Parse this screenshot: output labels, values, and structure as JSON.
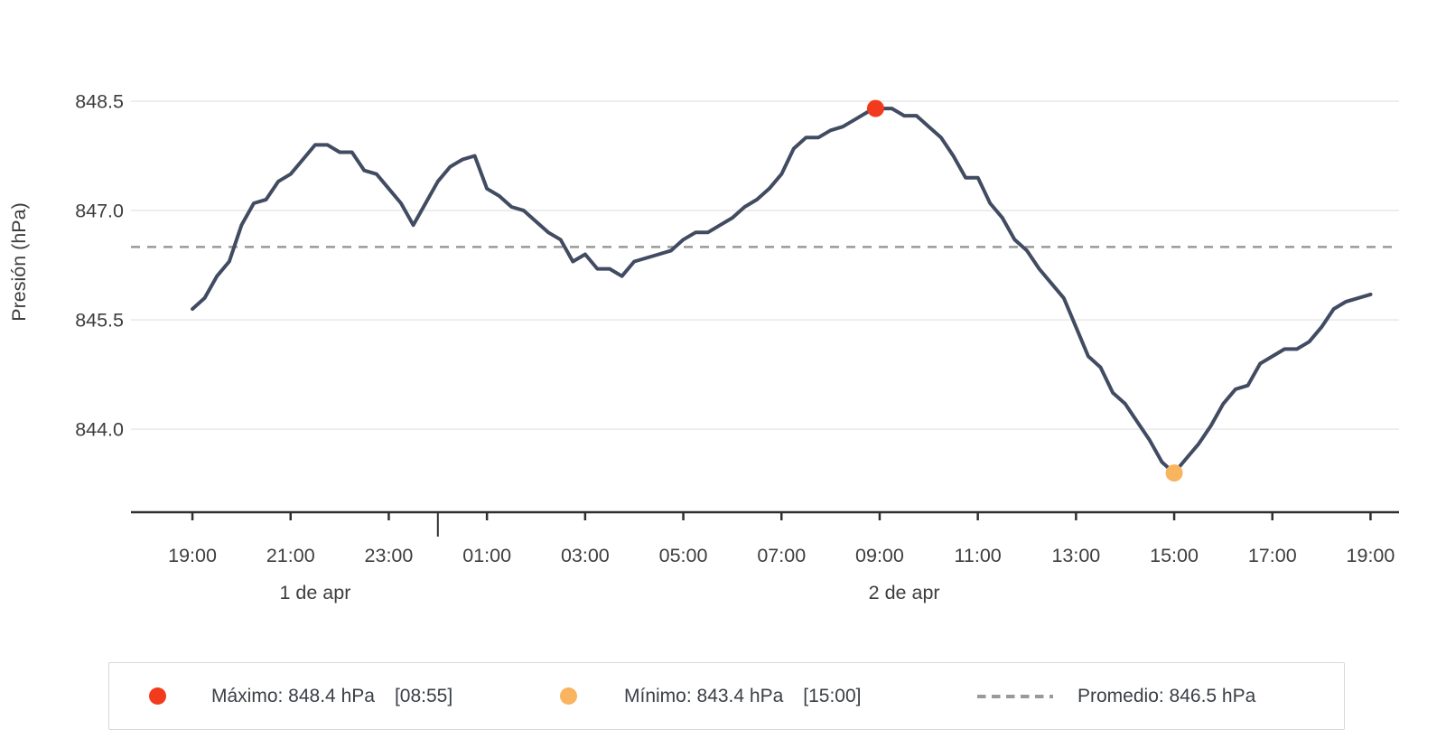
{
  "colors": {
    "line": "#414b61",
    "max": "#f23a1d",
    "min": "#f8b45f",
    "mean_line": "#999999"
  },
  "legend": {
    "items": [
      {
        "swatch": "dot",
        "color_ref": "max",
        "label": "Máximo: 848.4 hPa",
        "time": "[08:55]"
      },
      {
        "swatch": "dot",
        "color_ref": "min",
        "label": "Mínimo: 843.4 hPa",
        "time": "[15:00]"
      },
      {
        "swatch": "dash",
        "color_ref": "mean_line",
        "label": "Promedio: 846.5 hPa",
        "time": ""
      }
    ]
  },
  "chart_data": {
    "type": "line",
    "title": "",
    "xlabel": "",
    "ylabel": "Presión (hPa)",
    "series_name": "Presión",
    "y_ticks": [
      848.5,
      847.0,
      845.5,
      844.0
    ],
    "y_tick_labels": [
      "848.5",
      "847.0",
      "845.5",
      "844.0"
    ],
    "ylim": [
      842.85,
      849.65
    ],
    "grid": "horizontal-only",
    "legend_position": "bottom",
    "x_tick_labels": [
      "19:00",
      "21:00",
      "23:00",
      "01:00",
      "03:00",
      "05:00",
      "07:00",
      "09:00",
      "11:00",
      "13:00",
      "15:00",
      "17:00",
      "19:00"
    ],
    "x_tick_step_hours": 2,
    "day_labels": [
      "1 de apr",
      "2 de apr"
    ],
    "start_offset_hours": -5,
    "step_minutes": 15,
    "values": [
      845.65,
      845.8,
      846.1,
      846.3,
      846.8,
      847.1,
      847.15,
      847.4,
      847.5,
      847.7,
      847.9,
      847.9,
      847.8,
      847.8,
      847.55,
      847.5,
      847.3,
      847.1,
      846.8,
      847.1,
      847.4,
      847.6,
      847.7,
      847.75,
      847.3,
      847.2,
      847.05,
      847.0,
      846.85,
      846.7,
      846.6,
      846.3,
      846.4,
      846.2,
      846.2,
      846.1,
      846.3,
      846.35,
      846.4,
      846.45,
      846.6,
      846.7,
      846.7,
      846.8,
      846.9,
      847.05,
      847.15,
      847.3,
      847.5,
      847.85,
      848.0,
      848.0,
      848.1,
      848.15,
      848.25,
      848.35,
      848.4,
      848.4,
      848.3,
      848.3,
      848.15,
      848.0,
      847.75,
      847.45,
      847.45,
      847.1,
      846.9,
      846.6,
      846.45,
      846.2,
      846.0,
      845.8,
      845.4,
      845.0,
      844.85,
      844.5,
      844.35,
      844.1,
      843.85,
      843.55,
      843.4,
      843.6,
      843.8,
      844.05,
      844.35,
      844.55,
      844.6,
      844.9,
      845.0,
      845.1,
      845.1,
      845.2,
      845.4,
      845.65,
      845.75,
      845.8,
      845.85
    ],
    "max": {
      "value": 848.4,
      "time": "08:55"
    },
    "min": {
      "value": 843.4,
      "time": "15:00"
    },
    "mean": 846.5
  }
}
